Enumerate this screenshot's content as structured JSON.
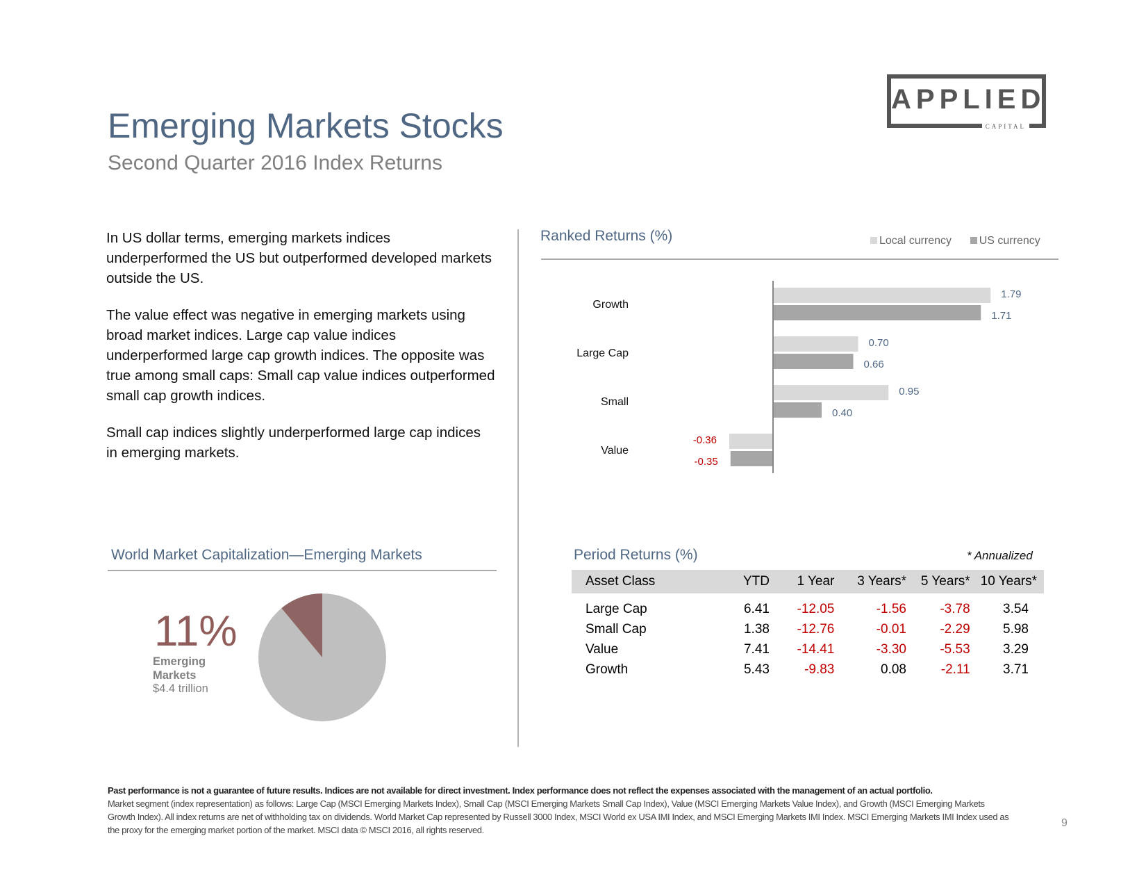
{
  "header": {
    "title": "Emerging Markets Stocks",
    "subtitle": "Second Quarter 2016 Index Returns"
  },
  "logo": {
    "word": "APPLIED",
    "sub": "CAPITAL"
  },
  "commentary": [
    "In US dollar terms, emerging markets indices underperformed the US but outperformed developed markets outside the US.",
    "The value effect was negative in emerging markets using broad market indices. Large cap value indices underperformed large cap growth indices. The opposite was true among small caps: Small cap value indices outperformed small cap growth indices.",
    "Small cap indices slightly underperformed large cap indices in emerging markets."
  ],
  "ranked": {
    "title": "Ranked Returns (%)",
    "legend_local": "Local  currency",
    "legend_us": "US currency"
  },
  "chart_data": {
    "type": "bar",
    "orientation": "horizontal",
    "title": "Ranked Returns (%)",
    "categories": [
      "Growth",
      "Large  Cap",
      "Small",
      "Value"
    ],
    "series": [
      {
        "name": "Local  currency",
        "values": [
          1.79,
          0.7,
          0.95,
          -0.36
        ],
        "labels": [
          "1.79",
          "0.70",
          "0.95",
          "-0.36"
        ],
        "color": "#d9d9d9"
      },
      {
        "name": "US currency",
        "values": [
          1.71,
          0.66,
          0.4,
          -0.35
        ],
        "labels": [
          "1.71",
          "0.66",
          "0.40",
          "-0.35"
        ],
        "color": "#a6a6a6"
      }
    ],
    "positive_label_color": "#4f6783",
    "negative_label_color": "#c00000",
    "legend": "top-right",
    "grid": false
  },
  "world_cap": {
    "title": "World Market Capitalization—Emerging Markets",
    "percent": "11%",
    "label": "Emerging Markets",
    "value": "$4.4  trillion",
    "share": 0.11,
    "slice_color": "#8f6563",
    "rest_color": "#bfbfbf"
  },
  "period": {
    "title": "Period Returns (%)",
    "note": "* Annualized",
    "headers": [
      "Asset Class",
      "YTD",
      "1 Year",
      "3 Years*",
      "5 Years*",
      "10 Years*"
    ],
    "rows": [
      [
        "Large Cap",
        "6.41",
        "-12.05",
        "-1.56",
        "-3.78",
        "3.54"
      ],
      [
        "Small Cap",
        "1.38",
        "-12.76",
        "-0.01",
        "-2.29",
        "5.98"
      ],
      [
        "Value",
        "7.41",
        "-14.41",
        "-3.30",
        "-5.53",
        "3.29"
      ],
      [
        "Growth",
        "5.43",
        "-9.83",
        "0.08",
        "-2.11",
        "3.71"
      ]
    ]
  },
  "footer": {
    "bold": "Past performance is not a guarantee of future results. Indices are not available for direct investment. Index performance does not reflect the expenses associated with the management of an actual portfolio.",
    "text": "Market segment (index representation) as follows: Large Cap (MSCI Emerging Markets Index), Small Cap (MSCI Emerging Markets Small Cap Index), Value (MSCI Emerging Markets Value Index), and Growth (MSCI Emerging Markets Growth Index). All index returns are net of withholding tax on dividends. World Market Cap represented by Russell 3000 Index, MSCI World ex USA IMI Index, and MSCI Emerging Markets IMI Index. MSCI Emerging Markets IMI Index used as the proxy for the emerging market portion of the market. MSCI data © MSCI 2016, all rights reserved.",
    "page": "9"
  }
}
